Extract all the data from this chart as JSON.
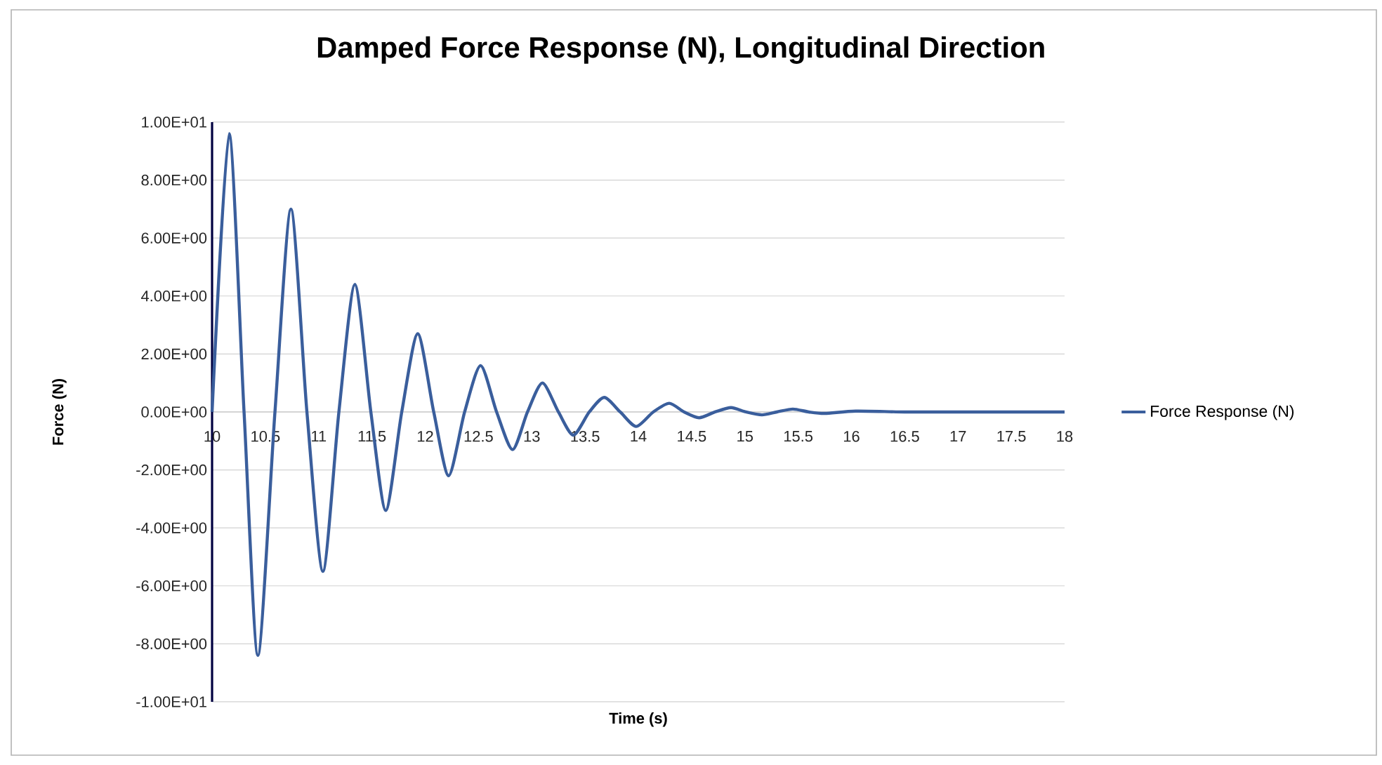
{
  "chart_data": {
    "type": "line",
    "title": "Damped Force Response (N), Longitudinal Direction",
    "xlabel": "Time (s)",
    "ylabel": "Force (N)",
    "xlim": [
      10,
      18
    ],
    "xticks": [
      10,
      10.5,
      11,
      11.5,
      12,
      12.5,
      13,
      13.5,
      14,
      14.5,
      15,
      15.5,
      16,
      16.5,
      17,
      17.5,
      18
    ],
    "ylim": [
      -10,
      10
    ],
    "yticks": [
      {
        "value": -10,
        "label": "-1.00E+01"
      },
      {
        "value": -8,
        "label": "-8.00E+00"
      },
      {
        "value": -6,
        "label": "-6.00E+00"
      },
      {
        "value": -4,
        "label": "-4.00E+00"
      },
      {
        "value": -2,
        "label": "-2.00E+00"
      },
      {
        "value": 0,
        "label": "0.00E+00"
      },
      {
        "value": 2,
        "label": "2.00E+00"
      },
      {
        "value": 4,
        "label": "4.00E+00"
      },
      {
        "value": 6,
        "label": "6.00E+00"
      },
      {
        "value": 8,
        "label": "8.00E+00"
      },
      {
        "value": 10,
        "label": "1.00E+01"
      }
    ],
    "grid": "y",
    "legend": "right",
    "marker": "none",
    "line_style": "solid",
    "series": [
      {
        "name": "Force Response (N)",
        "color": "#3a5e9c",
        "x": [
          10,
          10.16,
          10.3,
          10.43,
          10.59,
          10.74,
          10.89,
          11.04,
          11.19,
          11.34,
          11.49,
          11.63,
          11.78,
          11.93,
          12.08,
          12.22,
          12.37,
          12.52,
          12.67,
          12.82,
          12.96,
          13.1,
          13.25,
          13.39,
          13.54,
          13.68,
          13.83,
          13.98,
          14.14,
          14.29,
          14.43,
          14.57,
          14.72,
          14.87,
          15.01,
          15.16,
          15.3,
          15.45,
          15.6,
          15.75,
          16.04,
          16.5,
          17,
          17.5,
          18
        ],
        "values": [
          0,
          9.6,
          0,
          -8.4,
          0,
          7.0,
          0,
          -5.5,
          0,
          4.4,
          0,
          -3.4,
          0,
          2.7,
          0,
          -2.2,
          0,
          1.6,
          0,
          -1.3,
          0,
          1.0,
          0,
          -0.8,
          0,
          0.5,
          0,
          -0.5,
          0,
          0.3,
          0,
          -0.2,
          0,
          0.15,
          0,
          -0.1,
          0,
          0.1,
          0,
          -0.05,
          0.03,
          0,
          0,
          0,
          0
        ]
      }
    ]
  }
}
